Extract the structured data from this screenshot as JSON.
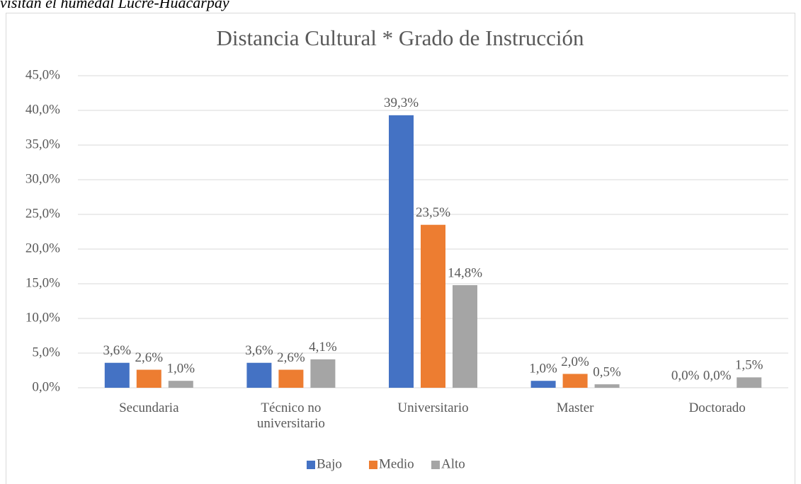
{
  "caption": "visitan el humedal Lucre-Huacarpay",
  "chart_data": {
    "type": "bar",
    "title": "Distancia Cultural * Grado de Instrucción",
    "categories": [
      "Secundaria",
      "Técnico no universitario",
      "Universitario",
      "Master",
      "Doctorado"
    ],
    "series": [
      {
        "name": "Bajo",
        "color": "#4472c4",
        "values": [
          3.6,
          3.6,
          39.3,
          1.0,
          0.0
        ],
        "value_labels": [
          "3,6%",
          "3,6%",
          "39,3%",
          "1,0%",
          "0,0%"
        ]
      },
      {
        "name": "Medio",
        "color": "#ed7d31",
        "values": [
          2.6,
          2.6,
          23.5,
          2.0,
          0.0
        ],
        "value_labels": [
          "2,6%",
          "2,6%",
          "23,5%",
          "2,0%",
          "0,0%"
        ]
      },
      {
        "name": "Alto",
        "color": "#a5a5a5",
        "values": [
          1.0,
          4.1,
          14.8,
          0.5,
          1.5
        ],
        "value_labels": [
          "1,0%",
          "4,1%",
          "14,8%",
          "0,5%",
          "1,5%"
        ]
      }
    ],
    "ylim": [
      0,
      45
    ],
    "yticks": [
      {
        "value": 0,
        "label": "0,0%"
      },
      {
        "value": 5,
        "label": "5,0%"
      },
      {
        "value": 10,
        "label": "10,0%"
      },
      {
        "value": 15,
        "label": "15,0%"
      },
      {
        "value": 20,
        "label": "20,0%"
      },
      {
        "value": 25,
        "label": "25,0%"
      },
      {
        "value": 30,
        "label": "30,0%"
      },
      {
        "value": 35,
        "label": "35,0%"
      },
      {
        "value": 40,
        "label": "40,0%"
      },
      {
        "value": 45,
        "label": "45,0%"
      }
    ],
    "grid": true,
    "legend": "bottom"
  }
}
